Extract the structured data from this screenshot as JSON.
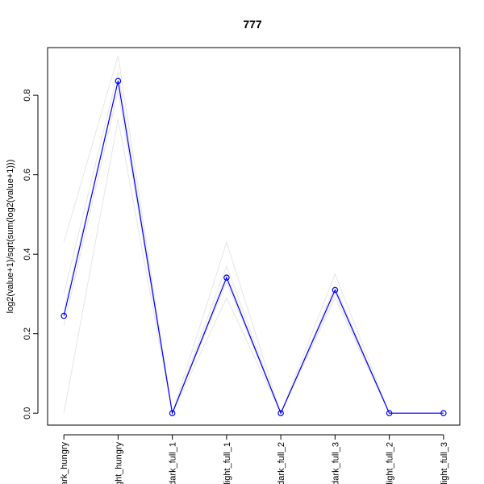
{
  "chart_data": {
    "type": "line",
    "title": "777",
    "xlabel": "",
    "ylabel": "log2(value+1)/sqrt(sum(log2(value+1)))",
    "categories": [
      "dark_hungry",
      "light_hungry",
      "dark_full_1",
      "light_full_1",
      "dark_full_2",
      "dark_full_3",
      "light_full_2",
      "light_full_3"
    ],
    "category_labels_visible": [
      "ark_hungry",
      "ght_hungry",
      "dark_full_1",
      "light_full_1",
      "dark_full_2",
      "dark_full_3",
      "light_full_2",
      "light_full_3"
    ],
    "yticks": [
      "0.0",
      "0.2",
      "0.4",
      "0.6",
      "0.8"
    ],
    "ylim": [
      -0.03,
      0.92
    ],
    "grid": false,
    "highlight": {
      "name": "777",
      "color": "#0000ff",
      "values": [
        0.245,
        0.836,
        0.0,
        0.341,
        0.0,
        0.31,
        0.0,
        0.0
      ]
    },
    "background_series": {
      "color": "#e6e6e6",
      "lines": [
        [
          0.43,
          0.9,
          0.0,
          0.43,
          0.0,
          0.35,
          0.0,
          0.0
        ],
        [
          0.0,
          0.74,
          0.0,
          0.29,
          0.0,
          0.29,
          0.0,
          0.0
        ],
        [
          0.3,
          0.86,
          0.0,
          0.37,
          0.0,
          0.32,
          0.0,
          0.0
        ],
        [
          0.22,
          0.81,
          0.0,
          0.33,
          0.0,
          0.3,
          0.0,
          0.0
        ],
        [
          0.26,
          0.84,
          0.0,
          0.35,
          0.0,
          0.31,
          0.0,
          0.0
        ]
      ]
    }
  }
}
